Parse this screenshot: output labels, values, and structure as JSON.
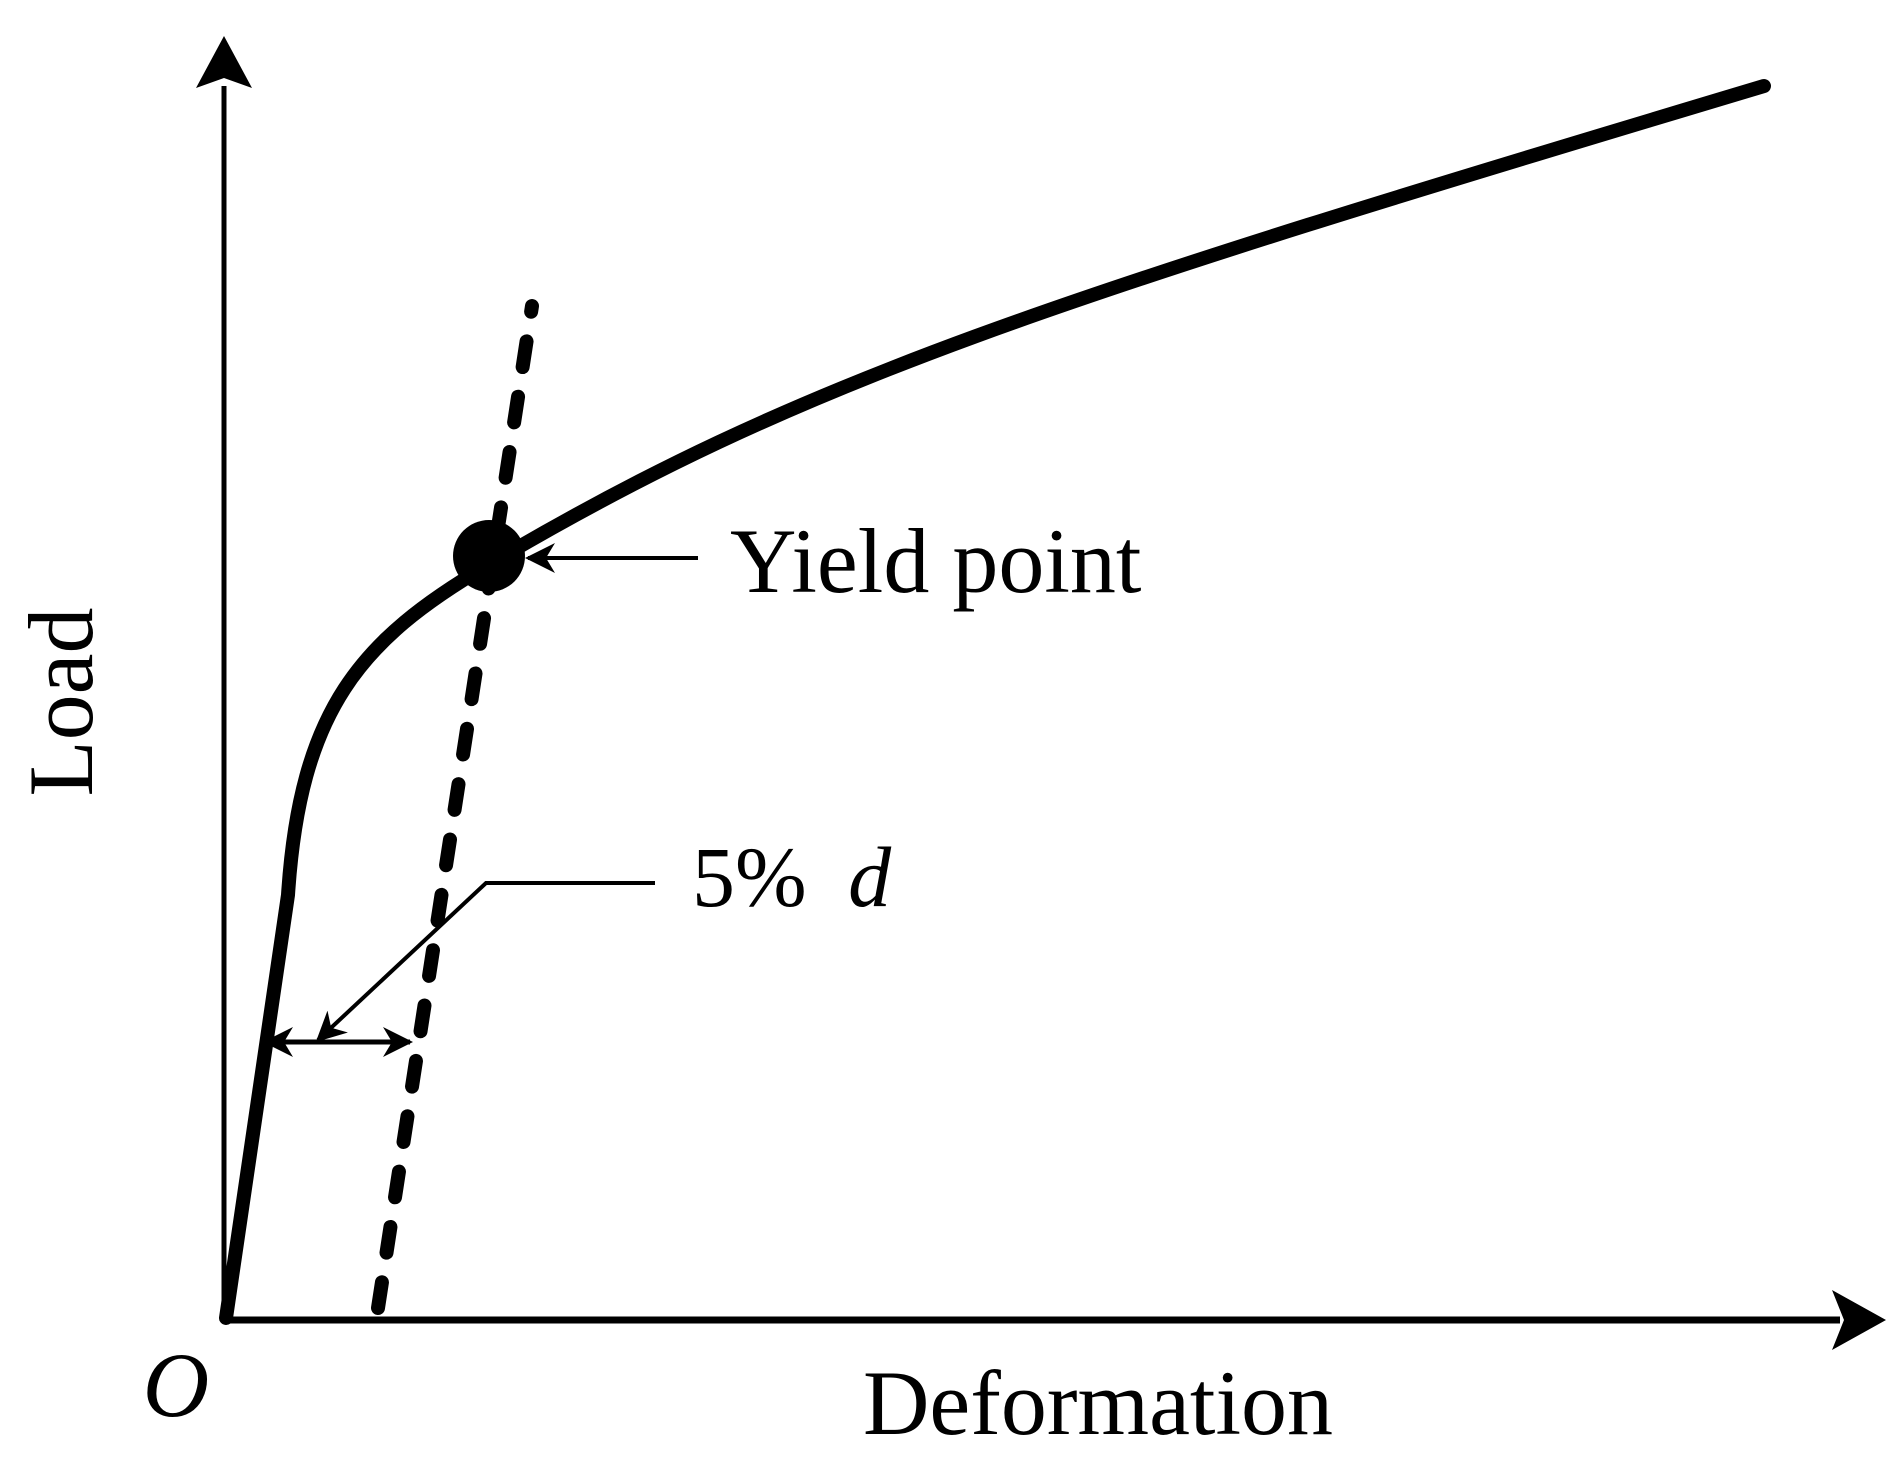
{
  "diagram": {
    "axes": {
      "y_label": "Load",
      "x_label": "Deformation",
      "origin_label": "O"
    },
    "annotations": {
      "yield_point": "Yield point",
      "offset_number": "5%",
      "offset_symbol": "d"
    },
    "colors": {
      "stroke": "#000000",
      "background": "#ffffff"
    }
  }
}
